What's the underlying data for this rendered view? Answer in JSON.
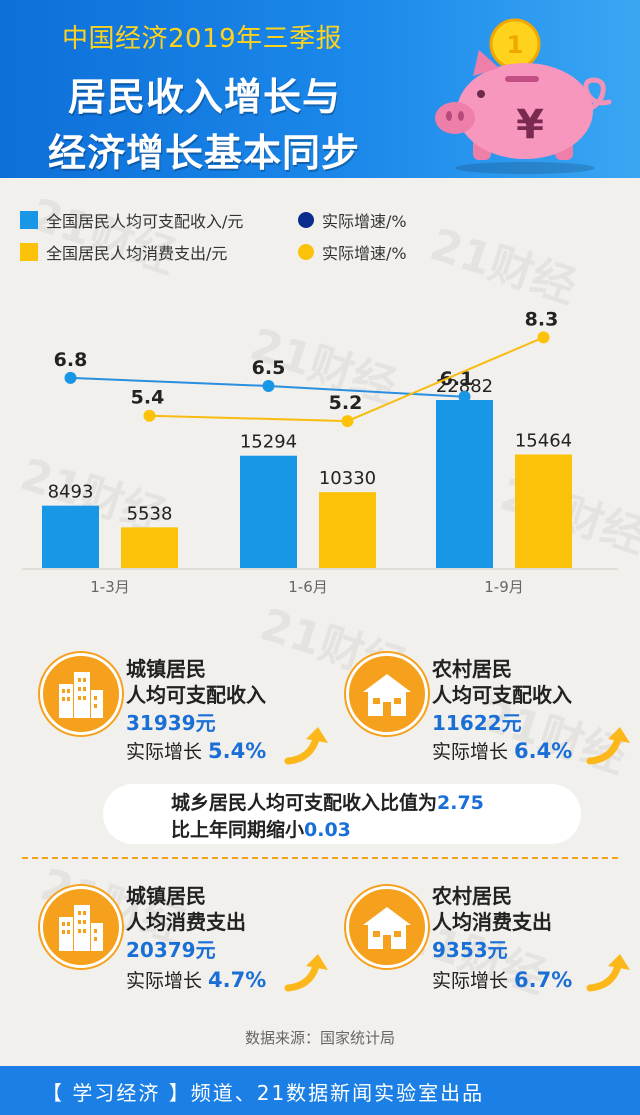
{
  "header": {
    "subtitle": "中国经济2019年三季报",
    "title_line1": "居民收入增长与",
    "title_line2": "经济增长基本同步",
    "pig_coin_label": "1",
    "pig_symbol": "¥"
  },
  "legend": {
    "income_bar": "全国居民人均可支配收入/元",
    "income_rate": "实际增速/%",
    "spending_bar": "全国居民人均消费支出/元",
    "spending_rate": "实际增速/%"
  },
  "colors": {
    "income": "#1797e6",
    "income_line": "#2b8fe0",
    "income_dot_legend": "#0b2c8c",
    "spending": "#fcc20a",
    "spending_line": "#f8bc10",
    "accent_blue": "#1a6fd6",
    "orange": "#f5a11d"
  },
  "chart_data": {
    "type": "bar",
    "categories": [
      "1-3月",
      "1-6月",
      "1-9月"
    ],
    "series": [
      {
        "name": "全国居民人均可支配收入/元",
        "values": [
          8493,
          15294,
          22882
        ]
      },
      {
        "name": "全国居民人均消费支出/元",
        "values": [
          5538,
          10330,
          15464
        ]
      }
    ],
    "lines": [
      {
        "name": "实际增速/%",
        "values": [
          6.8,
          6.5,
          6.1
        ]
      },
      {
        "name": "实际增速/%",
        "values": [
          5.4,
          5.2,
          8.3
        ]
      }
    ],
    "ylim": [
      0,
      26000
    ],
    "grid": false,
    "legend_position": "top-left"
  },
  "cards": {
    "urban_income": {
      "line1": "城镇居民",
      "line2": "人均可支配收入",
      "value": "31939元",
      "growth_label": "实际增长",
      "growth_value": "5.4%"
    },
    "rural_income": {
      "line1": "农村居民",
      "line2": "人均可支配收入",
      "value": "11622元",
      "growth_label": "实际增长",
      "growth_value": "6.4%"
    },
    "urban_spending": {
      "line1": "城镇居民",
      "line2": "人均消费支出",
      "value": "20379元",
      "growth_label": "实际增长",
      "growth_value": "4.7%"
    },
    "rural_spending": {
      "line1": "农村居民",
      "line2": "人均消费支出",
      "value": "9353元",
      "growth_label": "实际增长",
      "growth_value": "6.7%"
    }
  },
  "ratio": {
    "line1_text": "城乡居民人均可支配收入比值为",
    "line1_value": "2.75",
    "line2_text": "比上年同期缩小",
    "line2_value": "0.03"
  },
  "source": "数据来源：国家统计局",
  "footer": "【 学习经济 】频道、21数据新闻实验室出品",
  "watermark": "21财经"
}
